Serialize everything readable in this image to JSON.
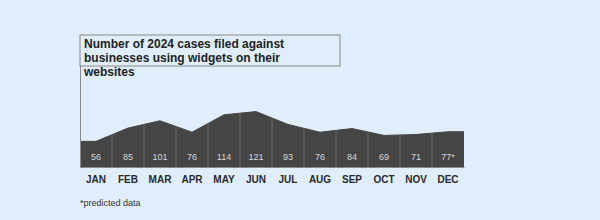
{
  "chart_data": {
    "type": "area",
    "title": "Number of 2024 cases filed against businesses using widgets on their websites",
    "categories": [
      "JAN",
      "FEB",
      "MAR",
      "APR",
      "MAY",
      "JUN",
      "JUL",
      "AUG",
      "SEP",
      "OCT",
      "NOV",
      "DEC"
    ],
    "values": [
      56,
      85,
      101,
      76,
      114,
      121,
      93,
      76,
      84,
      69,
      71,
      77
    ],
    "value_labels": [
      "56",
      "85",
      "101",
      "76",
      "114",
      "121",
      "93",
      "76",
      "84",
      "69",
      "71",
      "77*"
    ],
    "color": "#454545",
    "ylim": [
      0,
      225
    ],
    "data_labels": true,
    "tick_labels": "x",
    "annotations": [
      "*predicted data"
    ]
  }
}
